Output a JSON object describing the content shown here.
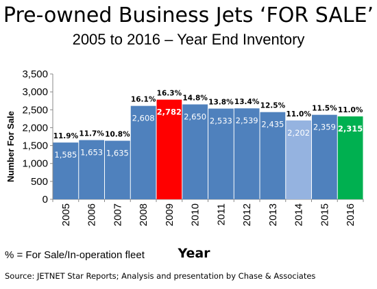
{
  "title": "Pre-owned Business Jets ‘FOR SALE’",
  "subtitle": "2005 to 2016 – Year End Inventory",
  "footnote": "% = For Sale/In-operation fleet",
  "source": "Source: JETNET Star Reports; Analysis and presentation by Chase & Associates",
  "chart_data": {
    "type": "bar",
    "xlabel": "Year",
    "ylabel": "Number For Sale",
    "ylim": [
      0,
      3500
    ],
    "yticks": [
      0,
      500,
      1000,
      1500,
      2000,
      2500,
      3000,
      3500
    ],
    "ytick_labels": [
      "0",
      "500",
      "1,000",
      "1,500",
      "2,000",
      "2,500",
      "3,000",
      "3,500"
    ],
    "grid": false,
    "categories": [
      "2005",
      "2006",
      "2007",
      "2008",
      "2009",
      "2010",
      "2011",
      "2012",
      "2013",
      "2014",
      "2015",
      "2016"
    ],
    "values": [
      1585,
      1653,
      1635,
      2608,
      2782,
      2650,
      2533,
      2539,
      2435,
      2202,
      2359,
      2315
    ],
    "value_labels": [
      "1,585",
      "1,653",
      "1,635",
      "2,608",
      "2,782",
      "2,650",
      "2,533",
      "2,539",
      "2,435",
      "2,202",
      "2,359",
      "2,315"
    ],
    "pct_labels": [
      "11.9%",
      "11.7%",
      "10.8%",
      "16.1%",
      "16.3%",
      "14.8%",
      "13.8%",
      "13.4%",
      "12.5%",
      "11.0%",
      "11.5%",
      "11.0%"
    ],
    "colors": [
      "#4f81bd",
      "#4f81bd",
      "#4f81bd",
      "#4f81bd",
      "#ff0000",
      "#4f81bd",
      "#4f81bd",
      "#4f81bd",
      "#4f81bd",
      "#95b3e0",
      "#4f81bd",
      "#00b050"
    ],
    "highlight_bold": [
      false,
      false,
      false,
      false,
      true,
      false,
      false,
      false,
      false,
      false,
      false,
      true
    ]
  }
}
